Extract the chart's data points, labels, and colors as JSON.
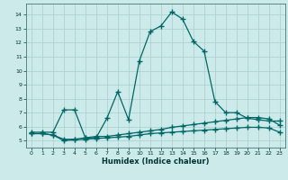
{
  "xlabel": "Humidex (Indice chaleur)",
  "bg_color": "#cceaea",
  "grid_color": "#aacccc",
  "line_color": "#006666",
  "x_values": [
    0,
    1,
    2,
    3,
    4,
    5,
    6,
    7,
    8,
    9,
    10,
    11,
    12,
    13,
    14,
    15,
    16,
    17,
    18,
    19,
    20,
    21,
    22,
    23
  ],
  "series1": [
    5.6,
    5.6,
    5.6,
    7.2,
    7.2,
    5.2,
    5.2,
    6.6,
    8.5,
    6.5,
    10.7,
    12.8,
    13.2,
    14.2,
    13.7,
    12.1,
    11.4,
    7.8,
    7.0,
    7.0,
    6.6,
    6.5,
    6.4,
    6.4
  ],
  "series2": [
    5.5,
    5.5,
    5.4,
    5.1,
    5.1,
    5.2,
    5.3,
    5.3,
    5.4,
    5.5,
    5.6,
    5.7,
    5.8,
    5.95,
    6.05,
    6.15,
    6.25,
    6.35,
    6.45,
    6.55,
    6.65,
    6.65,
    6.55,
    6.1
  ],
  "series3": [
    5.5,
    5.5,
    5.4,
    5.0,
    5.05,
    5.1,
    5.15,
    5.2,
    5.25,
    5.3,
    5.4,
    5.5,
    5.55,
    5.6,
    5.65,
    5.7,
    5.75,
    5.8,
    5.85,
    5.9,
    5.95,
    5.95,
    5.9,
    5.6
  ],
  "xlim": [
    -0.5,
    23.5
  ],
  "ylim": [
    4.5,
    14.8
  ],
  "yticks": [
    5,
    6,
    7,
    8,
    9,
    10,
    11,
    12,
    13,
    14
  ],
  "xticks": [
    0,
    1,
    2,
    3,
    4,
    5,
    6,
    7,
    8,
    9,
    10,
    11,
    12,
    13,
    14,
    15,
    16,
    17,
    18,
    19,
    20,
    21,
    22,
    23
  ]
}
